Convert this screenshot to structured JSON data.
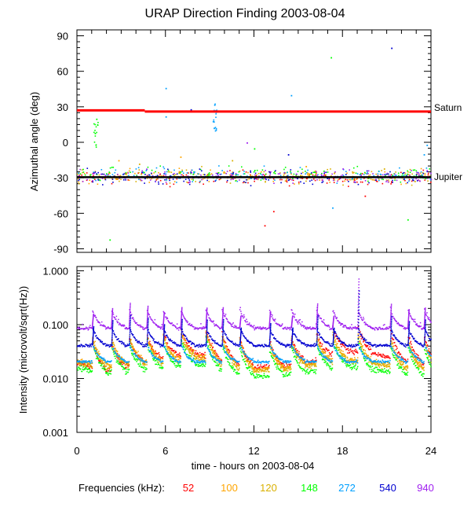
{
  "chart_data": {
    "title": "URAP Direction Finding  2003-08-04",
    "xlabel": "time - hours on 2003-08-04",
    "x_ticks": [
      "0",
      "6",
      "12",
      "18",
      "24"
    ],
    "xlim": [
      0,
      24
    ],
    "panels": [
      {
        "type": "scatter",
        "ylabel": "Azimuthal angle (deg)",
        "ylim": [
          -93,
          95
        ],
        "y_ticks": [
          "90",
          "60",
          "30",
          "0",
          "-30",
          "-60",
          "-90"
        ],
        "reference_lines": [
          {
            "label": "Saturn",
            "color": "#ff0000",
            "segments": [
              [
                0,
                4.6,
                27
              ],
              [
                4.6,
                24,
                26
              ]
            ]
          },
          {
            "label": "Jupiter",
            "color": "#000000",
            "segments": [
              [
                0,
                24,
                -29.5
              ]
            ]
          }
        ],
        "series": [
          {
            "name": "52",
            "color": "#ff0000",
            "cluster_mean": -30,
            "outliers": [
              [
                12.7,
                -70
              ],
              [
                13.3,
                -58
              ],
              [
                19.5,
                -45
              ]
            ]
          },
          {
            "name": "100",
            "color": "#ffa500",
            "cluster_mean": -28,
            "outliers": [
              [
                2.8,
                -15
              ],
              [
                7.0,
                -12
              ],
              [
                15.5,
                -20
              ]
            ]
          },
          {
            "name": "120",
            "color": "#d9b000",
            "cluster_mean": -28,
            "outliers": [
              [
                4.2,
                -18
              ],
              [
                10.5,
                -15
              ],
              [
                20.8,
                -22
              ]
            ]
          },
          {
            "name": "148",
            "color": "#00ff00",
            "cluster_mean": -27,
            "outliers": [
              [
                1.3,
                20
              ],
              [
                1.2,
                8
              ],
              [
                2.2,
                -82
              ],
              [
                17.2,
                72
              ],
              [
                22.4,
                -65
              ],
              [
                12.0,
                -5
              ]
            ]
          },
          {
            "name": "272",
            "color": "#00a0ff",
            "cluster_mean": -27,
            "outliers": [
              [
                6.0,
                46
              ],
              [
                6.0,
                22
              ],
              [
                9.3,
                32
              ],
              [
                9.2,
                18
              ],
              [
                9.4,
                12
              ],
              [
                14.5,
                40
              ],
              [
                17.3,
                -55
              ],
              [
                23.7,
                -2
              ],
              [
                23.5,
                -10
              ]
            ]
          },
          {
            "name": "540",
            "color": "#0000d0",
            "cluster_mean": -29,
            "outliers": [
              [
                21.3,
                80
              ],
              [
                14.3,
                -10
              ],
              [
                7.7,
                28
              ]
            ]
          },
          {
            "name": "940",
            "color": "#a020f0",
            "cluster_mean": -28,
            "outliers": [
              [
                11.5,
                0
              ],
              [
                18.0,
                -22
              ]
            ]
          }
        ]
      },
      {
        "type": "scatter",
        "yscale": "log",
        "ylabel": "Intensity (microvolt/sqrt(Hz))",
        "ylim": [
          0.001,
          1.2
        ],
        "y_ticks": [
          "1.000",
          "0.100",
          "0.010",
          "0.001"
        ],
        "y_tick_values": [
          1,
          0.1,
          0.01,
          0.001
        ],
        "series": [
          {
            "name": "52",
            "color": "#ff0000",
            "points": [
              [
                0,
                0.02
              ],
              [
                2,
                0.014
              ],
              [
                4,
                0.02
              ],
              [
                6,
                0.025
              ],
              [
                8,
                0.03
              ],
              [
                10,
                0.022
              ],
              [
                12,
                0.016
              ],
              [
                14,
                0.018
              ],
              [
                16,
                0.022
              ],
              [
                18,
                0.035
              ],
              [
                20,
                0.03
              ],
              [
                22,
                0.022
              ],
              [
                24,
                0.018
              ]
            ]
          },
          {
            "name": "100",
            "color": "#ffa500",
            "points": [
              [
                0,
                0.022
              ],
              [
                2,
                0.018
              ],
              [
                4,
                0.021
              ],
              [
                6,
                0.022
              ],
              [
                8,
                0.028
              ],
              [
                10,
                0.02
              ],
              [
                12,
                0.015
              ],
              [
                14,
                0.016
              ],
              [
                16,
                0.02
              ],
              [
                18,
                0.024
              ],
              [
                20,
                0.021
              ],
              [
                22,
                0.017
              ],
              [
                24,
                0.016
              ]
            ]
          },
          {
            "name": "120",
            "color": "#d9b000",
            "points": [
              [
                0,
                0.02
              ],
              [
                2,
                0.016
              ],
              [
                4,
                0.019
              ],
              [
                6,
                0.02
              ],
              [
                8,
                0.025
              ],
              [
                10,
                0.018
              ],
              [
                12,
                0.014
              ],
              [
                14,
                0.015
              ],
              [
                16,
                0.018
              ],
              [
                18,
                0.022
              ],
              [
                20,
                0.019
              ],
              [
                22,
                0.016
              ],
              [
                24,
                0.015
              ]
            ]
          },
          {
            "name": "148",
            "color": "#00ff00",
            "points": [
              [
                0,
                0.016
              ],
              [
                2,
                0.013
              ],
              [
                4,
                0.015
              ],
              [
                6,
                0.016
              ],
              [
                8,
                0.02
              ],
              [
                10,
                0.014
              ],
              [
                12,
                0.011
              ],
              [
                14,
                0.012
              ],
              [
                16,
                0.014
              ],
              [
                18,
                0.018
              ],
              [
                20,
                0.015
              ],
              [
                22,
                0.013
              ],
              [
                24,
                0.012
              ]
            ]
          },
          {
            "name": "272",
            "color": "#00a0ff",
            "points": [
              [
                0,
                0.021
              ],
              [
                6,
                0.021
              ],
              [
                12,
                0.021
              ],
              [
                18,
                0.021
              ],
              [
                24,
                0.021
              ]
            ]
          },
          {
            "name": "540",
            "color": "#0000d0",
            "points": [
              [
                0,
                0.042
              ],
              [
                6,
                0.042
              ],
              [
                12,
                0.042
              ],
              [
                18,
                0.042
              ],
              [
                24,
                0.042
              ]
            ]
          },
          {
            "name": "940",
            "color": "#a020f0",
            "points": [
              [
                0,
                0.088
              ],
              [
                6,
                0.088
              ],
              [
                12,
                0.088
              ],
              [
                18,
                0.088
              ],
              [
                24,
                0.088
              ]
            ]
          }
        ],
        "bursts_hours": [
          1.0,
          2.3,
          3.5,
          4.7,
          5.8,
          7.0,
          8.7,
          9.8,
          11.0,
          13.0,
          14.5,
          16.2,
          17.3,
          19.0,
          21.2,
          22.4,
          23.5
        ],
        "peak_burst": {
          "hour": 19.0,
          "value": 0.72
        }
      }
    ],
    "legend": {
      "label": "Frequencies (kHz):",
      "items": [
        {
          "text": "52",
          "color": "#ff0000"
        },
        {
          "text": "100",
          "color": "#ffa500"
        },
        {
          "text": "120",
          "color": "#d9b000"
        },
        {
          "text": "148",
          "color": "#00ff00"
        },
        {
          "text": "272",
          "color": "#00a0ff"
        },
        {
          "text": "540",
          "color": "#0000d0"
        },
        {
          "text": "940",
          "color": "#a020f0"
        }
      ]
    }
  }
}
